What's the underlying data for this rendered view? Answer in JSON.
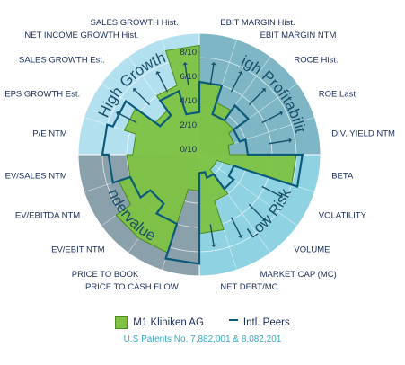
{
  "chart_data": {
    "type": "radar",
    "title": "",
    "axes": [
      "EBIT MARGIN Hist.",
      "EBIT MARGIN NTM",
      "ROCE Hist.",
      "ROE  Last",
      "DIV. YIELD NTM",
      "BETA",
      "VOLATILITY",
      "VOLUME",
      "MARKET CAP (MC)",
      "NET DEBT/MC",
      "PRICE TO CASH FLOW",
      "PRICE TO BOOK",
      "EV/EBIT NTM",
      "EV/EBITDA NTM",
      "EV/SALES NTM",
      "P/E NTM",
      "EPS GROWTH Est.",
      "SALES GROWTH Est.",
      "NET INCOME GROWTH Hist.",
      "SALES GROWTH Hist."
    ],
    "ring_labels": [
      "0/10",
      "2/10",
      "4/10",
      "6/10",
      "8/10"
    ],
    "range": [
      0,
      10
    ],
    "sectors": [
      {
        "label": "High Profitability",
        "color": "#7eb6c6"
      },
      {
        "label": "Low Risk",
        "color": "#8fd3e2"
      },
      {
        "label": "Undervalued",
        "color": "#8aa0aa"
      },
      {
        "label": "High Growth",
        "color": "#b3e0ef"
      }
    ],
    "series": [
      {
        "name": "M1 Kliniken AG",
        "values": [
          6.0,
          4.5,
          3.5,
          3.0,
          2.5,
          8.0,
          1.5,
          1.5,
          4.0,
          6.5,
          3.0,
          8.5,
          8.5,
          7.0,
          6.0,
          5.5,
          6.5,
          4.5,
          6.0,
          9.0
        ],
        "color": "#7dc242"
      },
      {
        "name": "Intl. Peers",
        "values": [
          6.0,
          3.5,
          5.0,
          3.5,
          4.0,
          8.5,
          3.0,
          3.5,
          2.0,
          1.5,
          9.0,
          6.0,
          5.0,
          6.0,
          7.5,
          8.0,
          7.5,
          4.0,
          5.5,
          3.5
        ],
        "color": "#0b5a7a"
      }
    ],
    "arrows": [
      true,
      true,
      true,
      true,
      true,
      false,
      true,
      true,
      true,
      true,
      false,
      false,
      false,
      false,
      false,
      false,
      true,
      true,
      true,
      true
    ],
    "grid": true,
    "legend_position": "bottom"
  },
  "legend": {
    "items": [
      {
        "label": "M1 Kliniken AG"
      },
      {
        "label": "Intl. Peers"
      }
    ]
  },
  "footer": {
    "patent_text": "U.S Patents No. 7,882,001 & 8,082,201"
  }
}
